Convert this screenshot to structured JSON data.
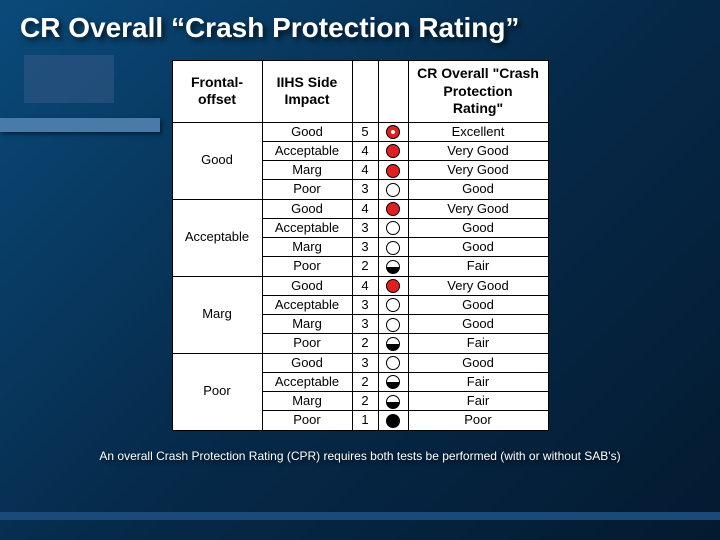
{
  "title": "CR Overall “Crash Protection Rating”",
  "table": {
    "headers": {
      "frontal": "Frontal-\noffset",
      "side": "IIHS Side\nImpact",
      "overall": "CR Overall \"Crash\nProtection Rating\""
    },
    "groups": [
      {
        "frontal": "Good",
        "rows": [
          {
            "side": "Good",
            "num": "5",
            "circle": "c5",
            "rating": "Excellent"
          },
          {
            "side": "Acceptable",
            "num": "4",
            "circle": "c4",
            "rating": "Very Good"
          },
          {
            "side": "Marg",
            "num": "4",
            "circle": "c4",
            "rating": "Very Good"
          },
          {
            "side": "Poor",
            "num": "3",
            "circle": "c3",
            "rating": "Good"
          }
        ]
      },
      {
        "frontal": "Acceptable",
        "rows": [
          {
            "side": "Good",
            "num": "4",
            "circle": "c4",
            "rating": "Very Good"
          },
          {
            "side": "Acceptable",
            "num": "3",
            "circle": "c3",
            "rating": "Good"
          },
          {
            "side": "Marg",
            "num": "3",
            "circle": "c3",
            "rating": "Good"
          },
          {
            "side": "Poor",
            "num": "2",
            "circle": "c2",
            "rating": "Fair"
          }
        ]
      },
      {
        "frontal": "Marg",
        "rows": [
          {
            "side": "Good",
            "num": "4",
            "circle": "c4",
            "rating": "Very Good"
          },
          {
            "side": "Acceptable",
            "num": "3",
            "circle": "c3",
            "rating": "Good"
          },
          {
            "side": "Marg",
            "num": "3",
            "circle": "c3",
            "rating": "Good"
          },
          {
            "side": "Poor",
            "num": "2",
            "circle": "c2",
            "rating": "Fair"
          }
        ]
      },
      {
        "frontal": "Poor",
        "rows": [
          {
            "side": "Good",
            "num": "3",
            "circle": "c3",
            "rating": "Good"
          },
          {
            "side": "Acceptable",
            "num": "2",
            "circle": "c2",
            "rating": "Fair"
          },
          {
            "side": "Marg",
            "num": "2",
            "circle": "c2",
            "rating": "Fair"
          },
          {
            "side": "Poor",
            "num": "1",
            "circle": "c1",
            "rating": "Poor"
          }
        ]
      }
    ]
  },
  "footnote": "An overall Crash Protection Rating (CPR) requires both tests be performed (with or without SAB's)"
}
